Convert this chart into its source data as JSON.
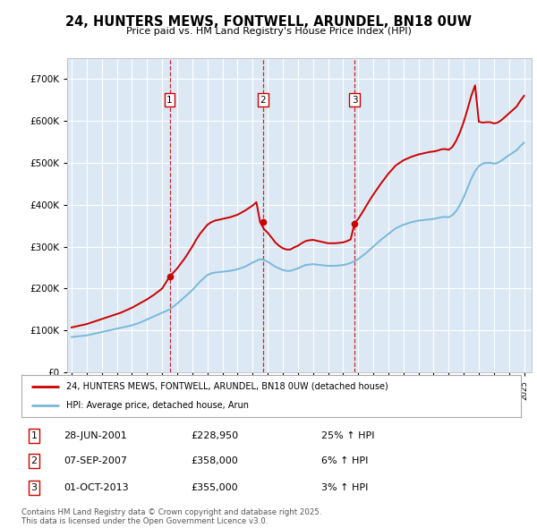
{
  "title": "24, HUNTERS MEWS, FONTWELL, ARUNDEL, BN18 0UW",
  "subtitle": "Price paid vs. HM Land Registry's House Price Index (HPI)",
  "bg_color": "#dce9f5",
  "grid_color": "#ffffff",
  "red_color": "#cc0000",
  "blue_color": "#7ab8d9",
  "legend_line1": "24, HUNTERS MEWS, FONTWELL, ARUNDEL, BN18 0UW (detached house)",
  "legend_line2": "HPI: Average price, detached house, Arun",
  "footer": "Contains HM Land Registry data © Crown copyright and database right 2025.\nThis data is licensed under the Open Government Licence v3.0.",
  "ylim": [
    0,
    750000
  ],
  "yticks": [
    0,
    100000,
    200000,
    300000,
    400000,
    500000,
    600000,
    700000
  ],
  "sale_years": [
    2001.497,
    2007.689,
    2013.748
  ],
  "sale_prices": [
    228950,
    358000,
    355000
  ],
  "sale_nums": [
    "1",
    "2",
    "3"
  ],
  "sale_dates": [
    "28-JUN-2001",
    "07-SEP-2007",
    "01-OCT-2013"
  ],
  "sale_prices_str": [
    "£228,950",
    "£358,000",
    "£355,000"
  ],
  "sale_changes": [
    "25% ↑ HPI",
    "6% ↑ HPI",
    "3% ↑ HPI"
  ],
  "xmin": 1994.7,
  "xmax": 2025.5,
  "xtick_years": [
    1995,
    1996,
    1997,
    1998,
    1999,
    2000,
    2001,
    2002,
    2003,
    2004,
    2005,
    2006,
    2007,
    2008,
    2009,
    2010,
    2011,
    2012,
    2013,
    2014,
    2015,
    2016,
    2017,
    2018,
    2019,
    2020,
    2021,
    2022,
    2023,
    2024,
    2025
  ],
  "hpi_x": [
    1995.0,
    1995.25,
    1995.5,
    1995.75,
    1996.0,
    1996.25,
    1996.5,
    1996.75,
    1997.0,
    1997.25,
    1997.5,
    1997.75,
    1998.0,
    1998.25,
    1998.5,
    1998.75,
    1999.0,
    1999.25,
    1999.5,
    1999.75,
    2000.0,
    2000.25,
    2000.5,
    2000.75,
    2001.0,
    2001.25,
    2001.5,
    2001.75,
    2002.0,
    2002.25,
    2002.5,
    2002.75,
    2003.0,
    2003.25,
    2003.5,
    2003.75,
    2004.0,
    2004.25,
    2004.5,
    2004.75,
    2005.0,
    2005.25,
    2005.5,
    2005.75,
    2006.0,
    2006.25,
    2006.5,
    2006.75,
    2007.0,
    2007.25,
    2007.5,
    2007.75,
    2008.0,
    2008.25,
    2008.5,
    2008.75,
    2009.0,
    2009.25,
    2009.5,
    2009.75,
    2010.0,
    2010.25,
    2010.5,
    2010.75,
    2011.0,
    2011.25,
    2011.5,
    2011.75,
    2012.0,
    2012.25,
    2012.5,
    2012.75,
    2013.0,
    2013.25,
    2013.5,
    2013.75,
    2014.0,
    2014.25,
    2014.5,
    2014.75,
    2015.0,
    2015.25,
    2015.5,
    2015.75,
    2016.0,
    2016.25,
    2016.5,
    2016.75,
    2017.0,
    2017.25,
    2017.5,
    2017.75,
    2018.0,
    2018.25,
    2018.5,
    2018.75,
    2019.0,
    2019.25,
    2019.5,
    2019.75,
    2020.0,
    2020.25,
    2020.5,
    2020.75,
    2021.0,
    2021.25,
    2021.5,
    2021.75,
    2022.0,
    2022.25,
    2022.5,
    2022.75,
    2023.0,
    2023.25,
    2023.5,
    2023.75,
    2024.0,
    2024.25,
    2024.5,
    2024.75,
    2025.0
  ],
  "hpi_y": [
    84000,
    85000,
    86000,
    87000,
    88000,
    90000,
    92000,
    94000,
    96000,
    98000,
    100000,
    102000,
    104000,
    106000,
    108000,
    110000,
    112000,
    115000,
    118000,
    122000,
    126000,
    130000,
    134000,
    138000,
    142000,
    146000,
    150000,
    157000,
    164000,
    172000,
    180000,
    188000,
    196000,
    206000,
    216000,
    224000,
    232000,
    236000,
    238000,
    239000,
    240000,
    241000,
    242000,
    244000,
    246000,
    249000,
    252000,
    257000,
    262000,
    266000,
    270000,
    268000,
    264000,
    258000,
    252000,
    248000,
    244000,
    242000,
    242000,
    245000,
    248000,
    252000,
    256000,
    257000,
    258000,
    257000,
    256000,
    255000,
    254000,
    254000,
    254000,
    255000,
    256000,
    258000,
    261000,
    265000,
    270000,
    277000,
    284000,
    292000,
    300000,
    308000,
    316000,
    323000,
    330000,
    337000,
    344000,
    348000,
    352000,
    355000,
    358000,
    360000,
    362000,
    363000,
    364000,
    365000,
    366000,
    368000,
    370000,
    371000,
    370000,
    375000,
    385000,
    400000,
    418000,
    440000,
    462000,
    480000,
    492000,
    498000,
    500000,
    500000,
    498000,
    500000,
    505000,
    512000,
    518000,
    524000,
    530000,
    540000,
    548000
  ],
  "red_x": [
    1995.0,
    1995.25,
    1995.5,
    1995.75,
    1996.0,
    1996.25,
    1996.5,
    1996.75,
    1997.0,
    1997.25,
    1997.5,
    1997.75,
    1998.0,
    1998.25,
    1998.5,
    1998.75,
    1999.0,
    1999.25,
    1999.5,
    1999.75,
    2000.0,
    2000.25,
    2000.5,
    2000.75,
    2001.0,
    2001.25,
    2001.5,
    2001.75,
    2002.0,
    2002.25,
    2002.5,
    2002.75,
    2003.0,
    2003.25,
    2003.5,
    2003.75,
    2004.0,
    2004.25,
    2004.5,
    2004.75,
    2005.0,
    2005.25,
    2005.5,
    2005.75,
    2006.0,
    2006.25,
    2006.5,
    2006.75,
    2007.0,
    2007.25,
    2007.5,
    2007.75,
    2008.0,
    2008.25,
    2008.5,
    2008.75,
    2009.0,
    2009.25,
    2009.5,
    2009.75,
    2010.0,
    2010.25,
    2010.5,
    2010.75,
    2011.0,
    2011.25,
    2011.5,
    2011.75,
    2012.0,
    2012.25,
    2012.5,
    2012.75,
    2013.0,
    2013.25,
    2013.5,
    2013.75,
    2014.0,
    2014.25,
    2014.5,
    2014.75,
    2015.0,
    2015.25,
    2015.5,
    2015.75,
    2016.0,
    2016.25,
    2016.5,
    2016.75,
    2017.0,
    2017.25,
    2017.5,
    2017.75,
    2018.0,
    2018.25,
    2018.5,
    2018.75,
    2019.0,
    2019.25,
    2019.5,
    2019.75,
    2020.0,
    2020.25,
    2020.5,
    2020.75,
    2021.0,
    2021.25,
    2021.5,
    2021.75,
    2022.0,
    2022.25,
    2022.5,
    2022.75,
    2023.0,
    2023.25,
    2023.5,
    2023.75,
    2024.0,
    2024.25,
    2024.5,
    2024.75,
    2025.0
  ],
  "red_y": [
    107000,
    109000,
    111000,
    113000,
    115000,
    118000,
    121000,
    124000,
    127000,
    130000,
    133000,
    136000,
    139000,
    142000,
    146000,
    150000,
    154000,
    159000,
    164000,
    169000,
    174000,
    180000,
    186000,
    193000,
    200000,
    214000,
    228950,
    238000,
    248000,
    260000,
    272000,
    286000,
    300000,
    316000,
    330000,
    341000,
    352000,
    358000,
    362000,
    364000,
    366000,
    368000,
    370000,
    373000,
    376000,
    381000,
    386000,
    392000,
    398000,
    406000,
    358000,
    342000,
    333000,
    322000,
    310000,
    302000,
    296000,
    293000,
    293000,
    298000,
    302000,
    308000,
    313000,
    315000,
    316000,
    314000,
    312000,
    310000,
    308000,
    308000,
    308000,
    309000,
    310000,
    313000,
    317000,
    355000,
    366000,
    380000,
    395000,
    410000,
    424000,
    437000,
    450000,
    462000,
    474000,
    484000,
    494000,
    500000,
    506000,
    510000,
    514000,
    517000,
    520000,
    522000,
    524000,
    526000,
    527000,
    529000,
    532000,
    533000,
    531000,
    538000,
    553000,
    573000,
    598000,
    628000,
    660000,
    685000,
    598000,
    596000,
    597000,
    597000,
    594000,
    596000,
    602000,
    610000,
    618000,
    626000,
    634000,
    648000,
    660000
  ]
}
